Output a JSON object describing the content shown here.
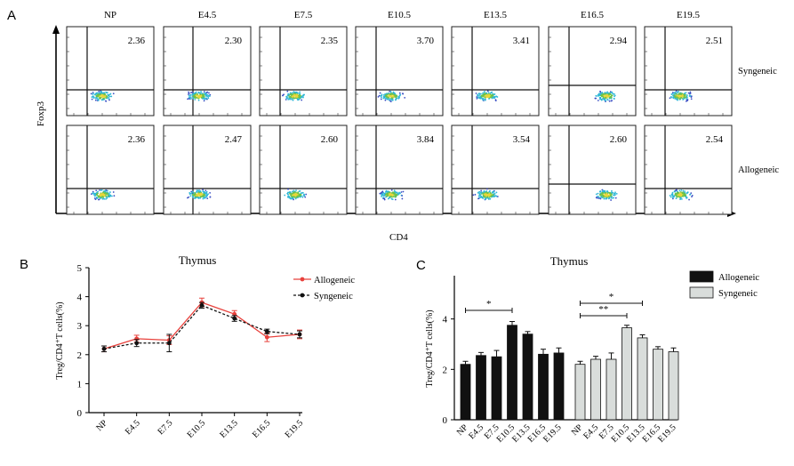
{
  "panels": {
    "a": "A",
    "b": "B",
    "c": "C"
  },
  "flow": {
    "x_axis_label": "CD4",
    "y_axis_label": "Foxp3",
    "conditions": [
      "NP",
      "E4.5",
      "E7.5",
      "E10.5",
      "E13.5",
      "E16.5",
      "E19.5"
    ],
    "rows": [
      {
        "label": "Syngeneic",
        "values": [
          "2.36",
          "2.30",
          "2.35",
          "3.70",
          "3.41",
          "2.94",
          "2.51"
        ]
      },
      {
        "label": "Allogeneic",
        "values": [
          "2.36",
          "2.47",
          "2.60",
          "3.84",
          "3.54",
          "2.60",
          "2.54"
        ]
      }
    ],
    "density_colors": [
      "#3b4fc4",
      "#2fb7d6",
      "#6cc24a",
      "#e8d63a"
    ]
  },
  "chart_data": [
    {
      "type": "line",
      "title": "Thymus",
      "xlabel": "",
      "ylabel": "Treg/CD4⁺T cells(%)",
      "categories": [
        "NP",
        "E4.5",
        "E7.5",
        "E10.5",
        "E13.5",
        "E16.5",
        "E19.5"
      ],
      "ylim": [
        0,
        5
      ],
      "yticks": [
        "0",
        "1",
        "2",
        "3",
        "4",
        "5"
      ],
      "legend_position": "top-right",
      "series": [
        {
          "name": "Allogeneic",
          "color": "#e8413c",
          "style": "solid",
          "values": [
            2.2,
            2.55,
            2.5,
            3.8,
            3.4,
            2.6,
            2.7
          ],
          "errors": [
            0.1,
            0.12,
            0.15,
            0.15,
            0.12,
            0.15,
            0.15
          ]
        },
        {
          "name": "Syngeneic",
          "color": "#111111",
          "style": "dashed",
          "values": [
            2.2,
            2.4,
            2.4,
            3.7,
            3.25,
            2.8,
            2.7
          ],
          "errors": [
            0.1,
            0.12,
            0.3,
            0.1,
            0.1,
            0.08,
            0.12
          ]
        }
      ],
      "grid": false
    },
    {
      "type": "bar",
      "title": "Thymus",
      "xlabel": "",
      "ylabel": "Treg/CD4⁺T cells(%)",
      "categories": [
        "NP",
        "E4.5",
        "E7.5",
        "E10.5",
        "E13.5",
        "E16.5",
        "E19.5"
      ],
      "ylim": [
        0,
        6
      ],
      "yticks": [
        "0",
        "2",
        "4"
      ],
      "legend_position": "top-right",
      "series": [
        {
          "name": "Allogeneic",
          "color": "#111111",
          "values": [
            2.2,
            2.55,
            2.5,
            3.75,
            3.4,
            2.6,
            2.65
          ],
          "errors": [
            0.12,
            0.12,
            0.25,
            0.15,
            0.1,
            0.2,
            0.2
          ]
        },
        {
          "name": "Syngeneic",
          "color": "#d9dddb",
          "values": [
            2.2,
            2.4,
            2.4,
            3.65,
            3.25,
            2.8,
            2.7
          ],
          "errors": [
            0.12,
            0.12,
            0.25,
            0.1,
            0.12,
            0.1,
            0.15
          ]
        }
      ],
      "significance": [
        {
          "series": "Allogeneic",
          "from": "NP",
          "to": "E10.5",
          "label": "*"
        },
        {
          "series": "Syngeneic",
          "from": "NP",
          "to": "E13.5",
          "label": "*"
        },
        {
          "series": "Syngeneic",
          "from": "NP",
          "to": "E10.5",
          "label": "**"
        }
      ],
      "grid": false
    }
  ]
}
